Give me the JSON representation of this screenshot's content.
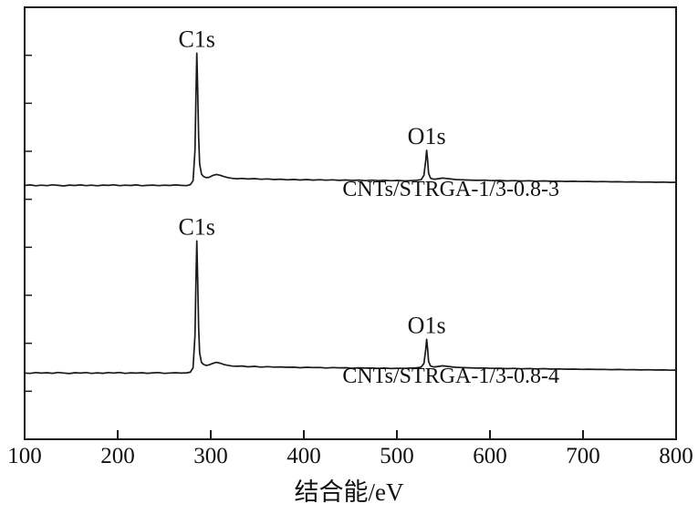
{
  "figure": {
    "background": "#ffffff",
    "line_color": "#1a1a1a",
    "text_color": "#111111"
  },
  "chart_data": {
    "type": "line",
    "title": "",
    "xlabel": "结合能/eV",
    "ylabel": "",
    "xlim": [
      100,
      800
    ],
    "ylim": [
      0,
      3.2
    ],
    "x_ticks": [
      100,
      200,
      300,
      400,
      500,
      600,
      700,
      800
    ],
    "grid": false,
    "legend": "inline-labels",
    "x": [
      100,
      106,
      112,
      118,
      124,
      130,
      136,
      142,
      148,
      154,
      160,
      166,
      172,
      178,
      184,
      190,
      196,
      202,
      208,
      214,
      220,
      226,
      232,
      238,
      244,
      250,
      256,
      262,
      268,
      274,
      278,
      281,
      283,
      284,
      285,
      286,
      287,
      288,
      290,
      292,
      295,
      298,
      302,
      306,
      310,
      314,
      318,
      323,
      328,
      334,
      340,
      347,
      354,
      361,
      368,
      375,
      382,
      389,
      396,
      403,
      410,
      417,
      424,
      431,
      438,
      445,
      452,
      459,
      466,
      473,
      480,
      487,
      494,
      501,
      508,
      515,
      521,
      526,
      529,
      531,
      532,
      533,
      534,
      536,
      538,
      541,
      545,
      549,
      553,
      558,
      563,
      570,
      578,
      586,
      594,
      602,
      610,
      618,
      626,
      634,
      642,
      650,
      658,
      666,
      674,
      682,
      690,
      698,
      706,
      714,
      722,
      730,
      738,
      746,
      754,
      762,
      770,
      778,
      786,
      794,
      800
    ],
    "series": [
      {
        "name": "CNTs/STRGA-1/3-0.8-3",
        "offset": 1.86,
        "peaks": [
          {
            "label": "C1s",
            "x": 285,
            "y": 1.0
          },
          {
            "label": "O1s",
            "x": 532,
            "y": 0.28
          }
        ],
        "label_anchor": {
          "x": 558,
          "y": 1.84
        },
        "values": [
          0.02,
          0.024,
          0.018,
          0.022,
          0.019,
          0.025,
          0.021,
          0.017,
          0.023,
          0.02,
          0.024,
          0.019,
          0.022,
          0.018,
          0.023,
          0.021,
          0.025,
          0.019,
          0.022,
          0.02,
          0.024,
          0.018,
          0.021,
          0.023,
          0.019,
          0.022,
          0.02,
          0.024,
          0.021,
          0.019,
          0.026,
          0.055,
          0.28,
          0.66,
          1.0,
          0.72,
          0.38,
          0.18,
          0.105,
          0.088,
          0.078,
          0.08,
          0.094,
          0.102,
          0.096,
          0.086,
          0.079,
          0.073,
          0.07,
          0.072,
          0.068,
          0.071,
          0.066,
          0.069,
          0.064,
          0.067,
          0.062,
          0.065,
          0.061,
          0.064,
          0.06,
          0.063,
          0.059,
          0.062,
          0.058,
          0.061,
          0.057,
          0.06,
          0.056,
          0.059,
          0.056,
          0.058,
          0.055,
          0.057,
          0.054,
          0.056,
          0.058,
          0.063,
          0.095,
          0.205,
          0.28,
          0.205,
          0.112,
          0.076,
          0.069,
          0.067,
          0.071,
          0.075,
          0.072,
          0.068,
          0.064,
          0.062,
          0.06,
          0.058,
          0.059,
          0.056,
          0.057,
          0.054,
          0.056,
          0.053,
          0.055,
          0.052,
          0.054,
          0.051,
          0.052,
          0.05,
          0.051,
          0.049,
          0.05,
          0.048,
          0.049,
          0.047,
          0.048,
          0.046,
          0.047,
          0.045,
          0.046,
          0.044,
          0.045,
          0.043,
          0.044
        ]
      },
      {
        "name": "CNTs/STRGA-1/3-0.8-4",
        "offset": 0.47,
        "peaks": [
          {
            "label": "C1s",
            "x": 285,
            "y": 1.0
          },
          {
            "label": "O1s",
            "x": 532,
            "y": 0.27
          }
        ],
        "label_anchor": {
          "x": 558,
          "y": 0.455
        },
        "values": [
          0.021,
          0.018,
          0.024,
          0.02,
          0.023,
          0.019,
          0.025,
          0.021,
          0.017,
          0.023,
          0.02,
          0.024,
          0.018,
          0.022,
          0.019,
          0.024,
          0.021,
          0.025,
          0.018,
          0.022,
          0.02,
          0.023,
          0.019,
          0.022,
          0.024,
          0.018,
          0.021,
          0.023,
          0.02,
          0.022,
          0.027,
          0.06,
          0.3,
          0.68,
          1.0,
          0.7,
          0.36,
          0.17,
          0.1,
          0.086,
          0.077,
          0.081,
          0.092,
          0.1,
          0.094,
          0.084,
          0.078,
          0.072,
          0.071,
          0.073,
          0.067,
          0.07,
          0.065,
          0.068,
          0.065,
          0.066,
          0.063,
          0.064,
          0.06,
          0.063,
          0.061,
          0.062,
          0.058,
          0.061,
          0.059,
          0.06,
          0.056,
          0.059,
          0.057,
          0.058,
          0.055,
          0.057,
          0.054,
          0.056,
          0.055,
          0.057,
          0.059,
          0.064,
          0.092,
          0.195,
          0.27,
          0.198,
          0.108,
          0.074,
          0.068,
          0.066,
          0.07,
          0.074,
          0.071,
          0.067,
          0.063,
          0.061,
          0.059,
          0.057,
          0.058,
          0.055,
          0.056,
          0.053,
          0.055,
          0.052,
          0.054,
          0.051,
          0.053,
          0.05,
          0.051,
          0.049,
          0.05,
          0.048,
          0.049,
          0.047,
          0.048,
          0.046,
          0.047,
          0.045,
          0.046,
          0.044,
          0.045,
          0.043,
          0.044,
          0.042,
          0.043
        ]
      }
    ]
  }
}
